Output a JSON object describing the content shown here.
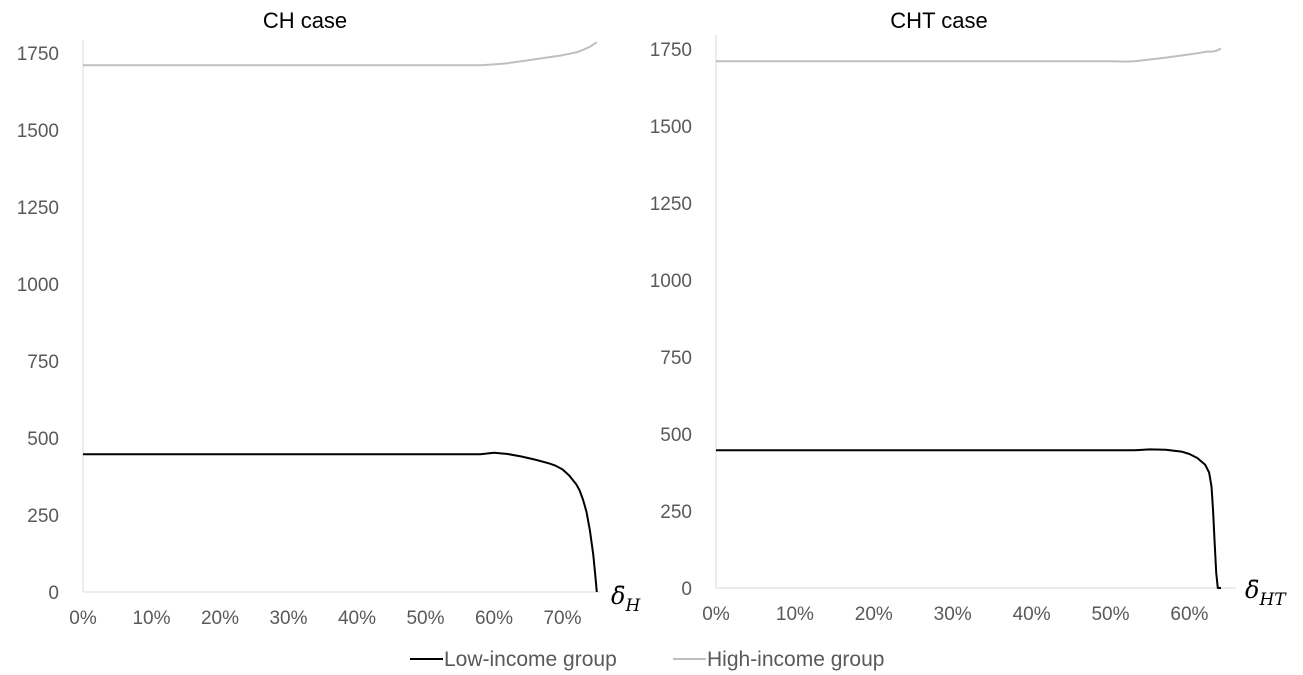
{
  "chart_data": [
    {
      "type": "line",
      "title": "CH case",
      "xlabel_symbol": "δ̄",
      "xlabel_subscript": "H",
      "ylabel": "",
      "ylim": [
        0,
        1750
      ],
      "xlim": [
        0,
        0.76
      ],
      "yticks": [
        "0",
        "250",
        "500",
        "750",
        "1000",
        "1250",
        "1500",
        "1750"
      ],
      "xticks": [
        "0%",
        "10%",
        "20%",
        "30%",
        "40%",
        "50%",
        "60%",
        "70%"
      ],
      "grid": false,
      "series": [
        {
          "name": "Low-income group",
          "color": "#000000",
          "x": [
            0,
            0.1,
            0.2,
            0.3,
            0.4,
            0.5,
            0.58,
            0.6,
            0.62,
            0.64,
            0.66,
            0.68,
            0.69,
            0.7,
            0.71,
            0.72,
            0.725,
            0.73,
            0.735,
            0.74,
            0.745,
            0.748,
            0.75
          ],
          "y": [
            447,
            447,
            447,
            447,
            447,
            447,
            447,
            452,
            448,
            440,
            430,
            418,
            410,
            398,
            378,
            350,
            330,
            300,
            260,
            200,
            120,
            50,
            0
          ]
        },
        {
          "name": "High-income group",
          "color": "#bfbfbf",
          "x": [
            0,
            0.1,
            0.2,
            0.3,
            0.4,
            0.5,
            0.58,
            0.6,
            0.62,
            0.64,
            0.66,
            0.68,
            0.7,
            0.72,
            0.73,
            0.74,
            0.75
          ],
          "y": [
            1710,
            1710,
            1710,
            1710,
            1710,
            1710,
            1710,
            1713,
            1717,
            1723,
            1730,
            1736,
            1743,
            1752,
            1760,
            1770,
            1785
          ]
        }
      ]
    },
    {
      "type": "line",
      "title": "CHT case",
      "xlabel_symbol": "δ̄",
      "xlabel_subscript": "HT",
      "ylabel": "",
      "ylim": [
        0,
        1750
      ],
      "xlim": [
        0,
        0.66
      ],
      "yticks": [
        "0",
        "250",
        "500",
        "750",
        "1000",
        "1250",
        "1500",
        "1750"
      ],
      "xticks": [
        "0%",
        "10%",
        "20%",
        "30%",
        "40%",
        "50%",
        "60%"
      ],
      "grid": false,
      "series": [
        {
          "name": "Low-income group",
          "color": "#000000",
          "x": [
            0,
            0.1,
            0.2,
            0.3,
            0.4,
            0.5,
            0.53,
            0.55,
            0.57,
            0.59,
            0.6,
            0.61,
            0.62,
            0.625,
            0.628,
            0.63,
            0.632,
            0.634,
            0.636,
            0.64
          ],
          "y": [
            447,
            447,
            447,
            447,
            447,
            447,
            447,
            450,
            449,
            443,
            435,
            422,
            400,
            375,
            330,
            250,
            150,
            50,
            0,
            0
          ]
        },
        {
          "name": "High-income group",
          "color": "#bfbfbf",
          "x": [
            0,
            0.1,
            0.2,
            0.3,
            0.4,
            0.5,
            0.52,
            0.53,
            0.55,
            0.57,
            0.59,
            0.61,
            0.62,
            0.63,
            0.635,
            0.64
          ],
          "y": [
            1710,
            1710,
            1710,
            1710,
            1710,
            1710,
            1709,
            1710,
            1716,
            1722,
            1729,
            1736,
            1741,
            1742,
            1745,
            1752
          ]
        }
      ]
    }
  ],
  "legend": {
    "items": [
      {
        "label": "Low-income group",
        "color": "#000000"
      },
      {
        "label": "High-income group",
        "color": "#bfbfbf"
      }
    ],
    "placement": "bottom"
  }
}
